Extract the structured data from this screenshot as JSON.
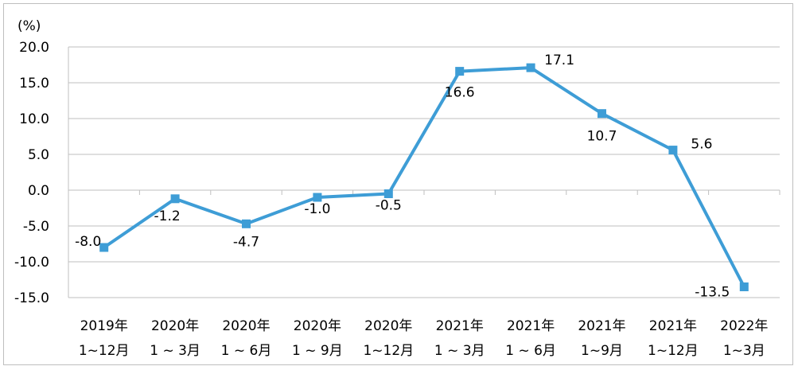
{
  "chart_data": {
    "type": "line",
    "unit_label": "(%)",
    "categories": [
      [
        "2019年",
        "1~12月"
      ],
      [
        "2020年",
        "1 ~ 3月"
      ],
      [
        "2020年",
        "1 ~ 6月"
      ],
      [
        "2020年",
        "1 ~ 9月"
      ],
      [
        "2020年",
        "1~12月"
      ],
      [
        "2021年",
        "1 ~ 3月"
      ],
      [
        "2021年",
        "1 ~ 6月"
      ],
      [
        "2021年",
        "1~9月"
      ],
      [
        "2021年",
        "1~12月"
      ],
      [
        "2022年",
        "1~3月"
      ]
    ],
    "values": [
      -8.0,
      -1.2,
      -4.7,
      -1.0,
      -0.5,
      16.6,
      17.1,
      10.7,
      5.6,
      -13.5
    ],
    "data_labels": [
      "-8.0",
      "-1.2",
      "-4.7",
      "-1.0",
      "-0.5",
      "16.6",
      "17.1",
      "10.7",
      "5.6",
      "-13.5"
    ],
    "y_ticks": [
      "20.0",
      "15.0",
      "10.0",
      "5.0",
      "0.0",
      "-5.0",
      "-10.0",
      "-15.0"
    ],
    "ylim": [
      -15,
      20
    ],
    "grid": true,
    "line_color": "#3e9dd6",
    "grid_color": "#bfbfbf"
  }
}
